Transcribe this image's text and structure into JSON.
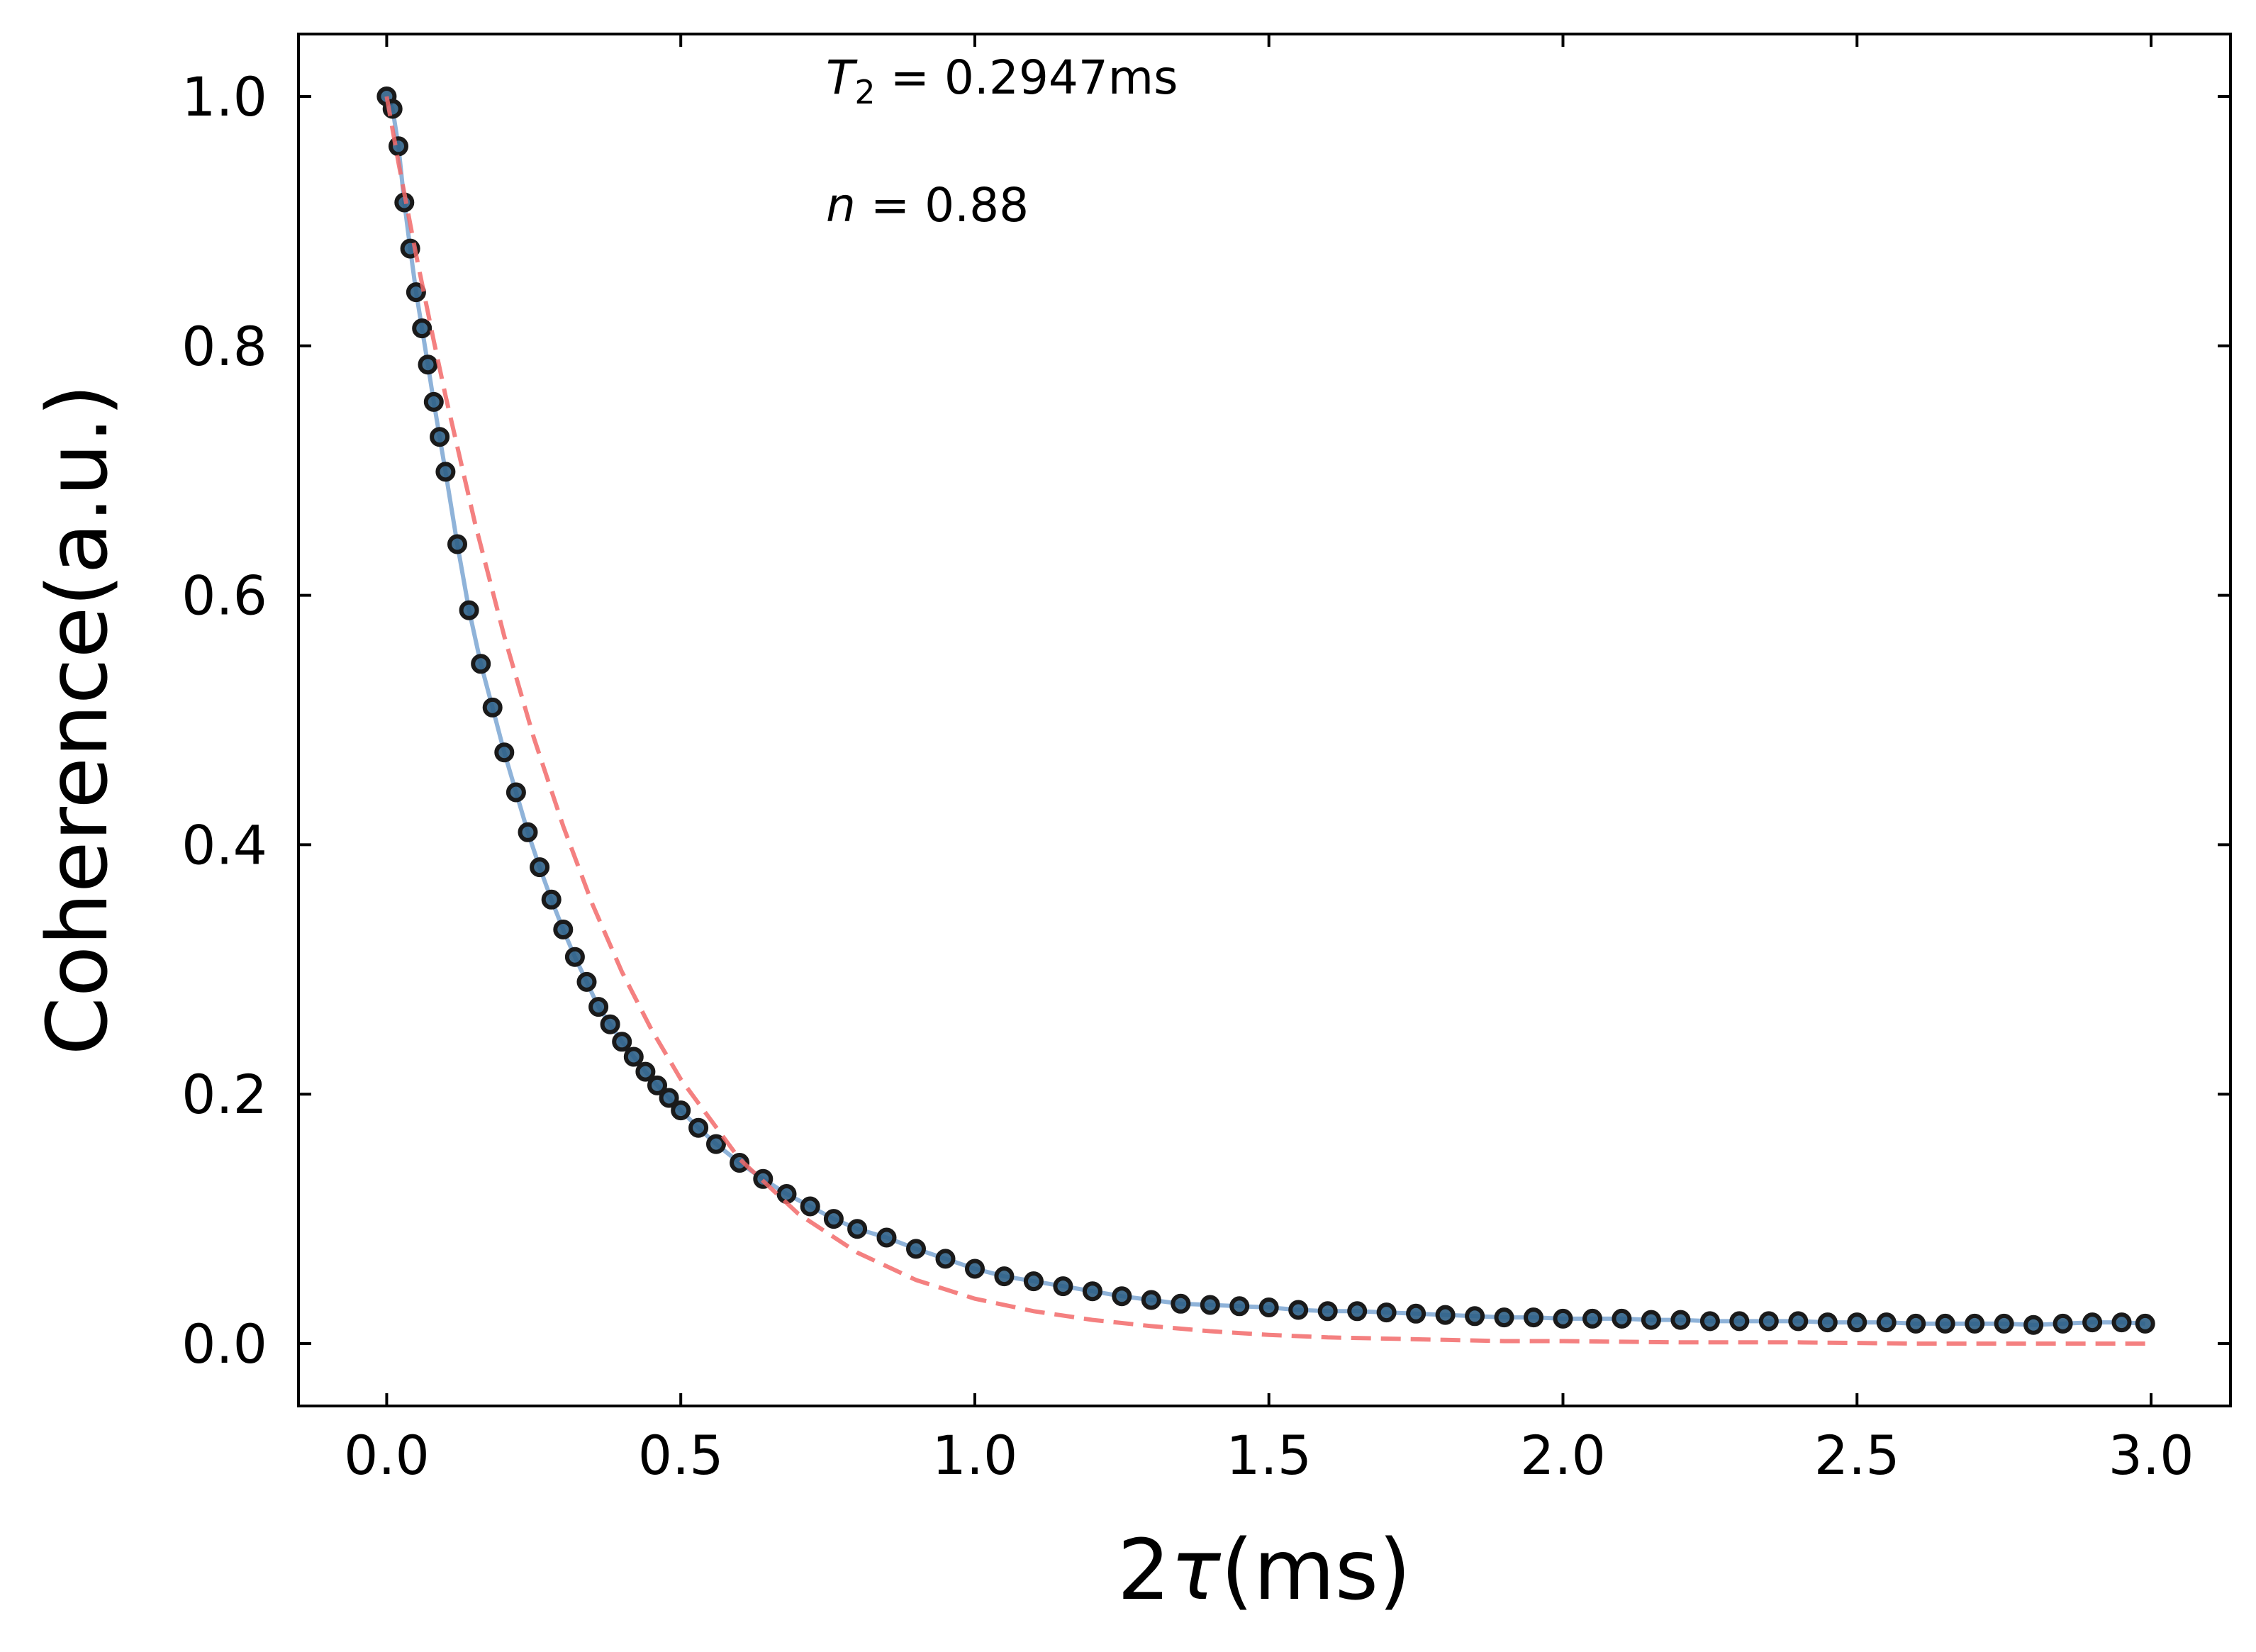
{
  "chart_data": {
    "type": "scatter",
    "xlabel_prefix": "2",
    "xlabel_symbol": "τ",
    "xlabel_suffix": "(ms)",
    "ylabel": "Coherence(a.u.)",
    "xlim": [
      -0.15,
      3.135
    ],
    "ylim": [
      -0.05,
      1.05
    ],
    "x_ticks": [
      "0.0",
      "0.5",
      "1.0",
      "1.5",
      "2.0",
      "2.5",
      "3.0"
    ],
    "y_ticks": [
      "0.0",
      "0.2",
      "0.4",
      "0.6",
      "0.8",
      "1.0"
    ],
    "grid": false,
    "annotations": {
      "t2_symbol": "T",
      "t2_sub": "2",
      "t2_value": " = 0.2947ms",
      "n_symbol": "n",
      "n_value": " = 0.88"
    },
    "colors": {
      "marker_fill": "#2e5f86",
      "marker_edge": "#1a1a1a",
      "data_line": "#8fb3d9",
      "fit_line": "#f26a6a"
    },
    "series": [
      {
        "kind": "data",
        "x": [
          0.0,
          0.01,
          0.02,
          0.03,
          0.04,
          0.05,
          0.06,
          0.07,
          0.08,
          0.09,
          0.1,
          0.12,
          0.14,
          0.16,
          0.18,
          0.2,
          0.22,
          0.24,
          0.26,
          0.28,
          0.3,
          0.32,
          0.34,
          0.36,
          0.38,
          0.4,
          0.42,
          0.44,
          0.46,
          0.48,
          0.5,
          0.53,
          0.56,
          0.6,
          0.64,
          0.68,
          0.72,
          0.76,
          0.8,
          0.85,
          0.9,
          0.95,
          1.0,
          1.05,
          1.1,
          1.15,
          1.2,
          1.25,
          1.3,
          1.35,
          1.4,
          1.45,
          1.5,
          1.55,
          1.6,
          1.65,
          1.7,
          1.75,
          1.8,
          1.85,
          1.9,
          1.95,
          2.0,
          2.05,
          2.1,
          2.15,
          2.2,
          2.25,
          2.3,
          2.35,
          2.4,
          2.45,
          2.5,
          2.55,
          2.6,
          2.65,
          2.7,
          2.75,
          2.8,
          2.85,
          2.9,
          2.95,
          2.99
        ],
        "y": [
          1.0,
          0.99,
          0.96,
          0.915,
          0.878,
          0.843,
          0.814,
          0.785,
          0.755,
          0.727,
          0.699,
          0.641,
          0.588,
          0.545,
          0.51,
          0.474,
          0.442,
          0.41,
          0.382,
          0.356,
          0.332,
          0.31,
          0.29,
          0.27,
          0.256,
          0.242,
          0.23,
          0.218,
          0.207,
          0.197,
          0.187,
          0.173,
          0.16,
          0.145,
          0.132,
          0.12,
          0.11,
          0.1,
          0.092,
          0.085,
          0.076,
          0.068,
          0.06,
          0.054,
          0.05,
          0.046,
          0.042,
          0.038,
          0.035,
          0.032,
          0.031,
          0.03,
          0.029,
          0.027,
          0.026,
          0.026,
          0.025,
          0.024,
          0.023,
          0.022,
          0.021,
          0.021,
          0.02,
          0.02,
          0.02,
          0.019,
          0.019,
          0.018,
          0.018,
          0.018,
          0.018,
          0.017,
          0.017,
          0.017,
          0.016,
          0.016,
          0.016,
          0.016,
          0.015,
          0.016,
          0.017,
          0.017,
          0.016
        ]
      },
      {
        "kind": "fit",
        "x": [
          0.0,
          0.02,
          0.05,
          0.08,
          0.1,
          0.15,
          0.2,
          0.25,
          0.3,
          0.35,
          0.4,
          0.45,
          0.5,
          0.6,
          0.7,
          0.8,
          0.9,
          1.0,
          1.1,
          1.2,
          1.3,
          1.4,
          1.5,
          1.6,
          1.7,
          1.8,
          1.9,
          2.0,
          2.2,
          2.4,
          2.6,
          2.8,
          2.99
        ],
        "y": [
          1.0,
          0.947,
          0.873,
          0.804,
          0.76,
          0.658,
          0.567,
          0.486,
          0.415,
          0.352,
          0.298,
          0.252,
          0.212,
          0.148,
          0.104,
          0.073,
          0.051,
          0.036,
          0.026,
          0.019,
          0.014,
          0.01,
          0.007,
          0.005,
          0.004,
          0.003,
          0.002,
          0.002,
          0.001,
          0.001,
          0.0,
          0.0,
          0.0
        ]
      }
    ]
  }
}
